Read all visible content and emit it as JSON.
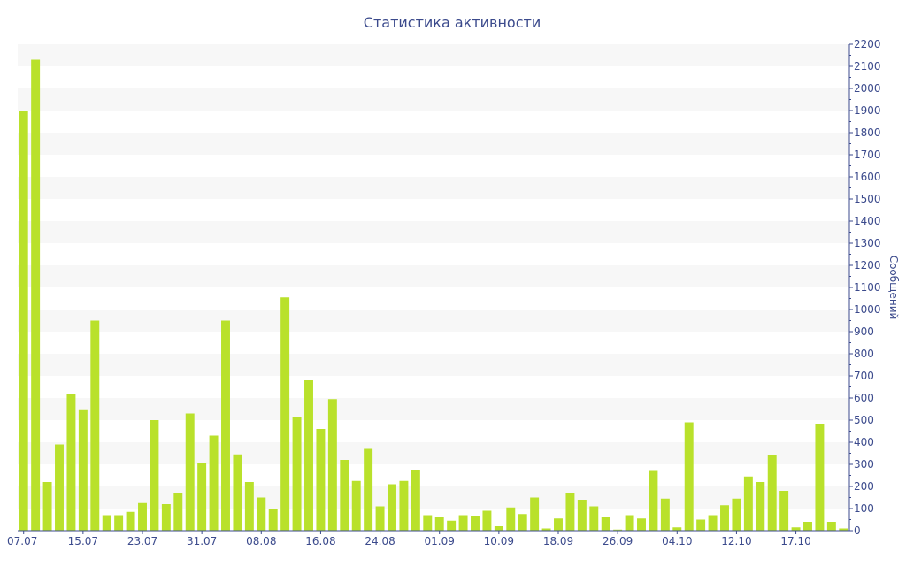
{
  "chart_data": {
    "type": "bar",
    "title": "Статистика активности",
    "ylabel": "Сообщений",
    "ylim": [
      0,
      2200
    ],
    "ytick_step": 100,
    "y_axis_side": "right",
    "grid": "alternating horizontal bands",
    "bar_color": "#b9e12b",
    "band_color": "#f7f7f7",
    "text_color": "#3b4a8c",
    "x_labels": [
      "07.07",
      "15.07",
      "23.07",
      "31.07",
      "08.08",
      "16.08",
      "24.08",
      "01.09",
      "10.09",
      "18.09",
      "26.09",
      "04.10",
      "12.10",
      "17.10"
    ],
    "x_label_indices": [
      0,
      5,
      10,
      15,
      20,
      25,
      30,
      35,
      40,
      45,
      50,
      55,
      60,
      65
    ],
    "values": [
      1900,
      2130,
      220,
      390,
      620,
      545,
      950,
      70,
      70,
      85,
      125,
      500,
      120,
      170,
      530,
      305,
      430,
      950,
      345,
      220,
      150,
      100,
      1055,
      515,
      680,
      460,
      595,
      320,
      225,
      370,
      110,
      210,
      225,
      275,
      70,
      60,
      45,
      70,
      65,
      90,
      20,
      105,
      75,
      150,
      10,
      55,
      170,
      140,
      110,
      60,
      5,
      70,
      55,
      270,
      145,
      15,
      490,
      50,
      70,
      115,
      145,
      245,
      220,
      340,
      180,
      15,
      40,
      480,
      40,
      10
    ]
  }
}
